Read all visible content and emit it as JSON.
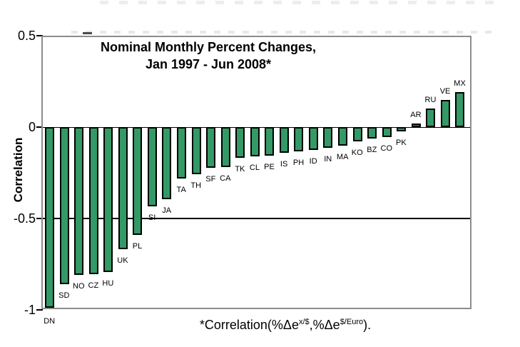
{
  "chart_data": {
    "type": "bar",
    "title_line1": "Nominal Monthly Percent Changes,",
    "title_line2": "Jan 1997 - Jun 2008*",
    "ylabel": "Correlation",
    "ylim": [
      -1,
      0.5
    ],
    "grid": "horizontal line at 0 and -0.5",
    "legend": "none",
    "yticks": [
      {
        "label": "0.5",
        "value": 0.5
      },
      {
        "label": "0",
        "value": 0
      },
      {
        "label": "-0.5",
        "value": -0.5
      },
      {
        "label": "-1",
        "value": -1
      }
    ],
    "gridlines": [
      {
        "value": 0,
        "weight": 1
      },
      {
        "value": -0.5,
        "weight": 2
      }
    ],
    "categories": [
      "DN",
      "SD",
      "NO",
      "CZ",
      "HU",
      "UK",
      "PL",
      "SI",
      "JA",
      "TA",
      "TH",
      "SF",
      "CA",
      "TK",
      "CL",
      "PE",
      "IS",
      "PH",
      "ID",
      "IN",
      "MA",
      "KO",
      "BZ",
      "CO",
      "PK",
      "AR",
      "RU",
      "VE",
      "MX"
    ],
    "values": [
      -1.0,
      -0.86,
      -0.81,
      -0.805,
      -0.795,
      -0.67,
      -0.59,
      -0.435,
      -0.395,
      -0.28,
      -0.26,
      -0.225,
      -0.22,
      -0.17,
      -0.16,
      -0.155,
      -0.14,
      -0.135,
      -0.125,
      -0.115,
      -0.1,
      -0.078,
      -0.062,
      -0.055,
      -0.024,
      0.02,
      0.1,
      0.15,
      0.19
    ],
    "bar_color": "#339966",
    "bar_border_color": "#000000",
    "plot_border_color": "#8c8c8c",
    "footnote": {
      "prefix": "*Correlation(%Δe",
      "sup1": "x/$",
      "mid": ",%Δe",
      "sup2": "$/Euro",
      "suffix": ")."
    }
  }
}
